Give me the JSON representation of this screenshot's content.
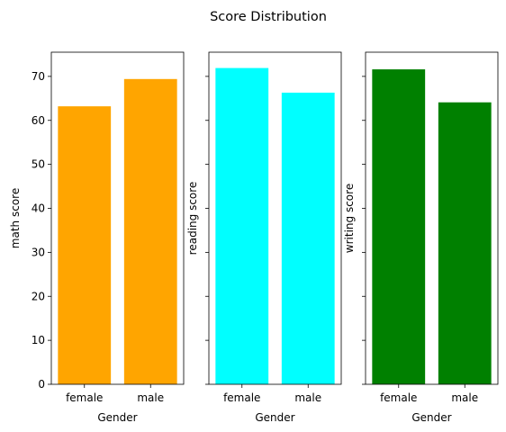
{
  "chart_data": {
    "title": "Score Distribution",
    "type": "bar",
    "ylim": [
      0,
      75.5
    ],
    "yticks": [
      0,
      10,
      20,
      30,
      40,
      50,
      60,
      70
    ],
    "charts": [
      {
        "type": "bar",
        "categories": [
          "female",
          "male"
        ],
        "values": [
          63.2,
          69.4
        ],
        "xlabel": "Gender",
        "ylabel": "math score",
        "color": "#ffa500",
        "show_yticklabels": true
      },
      {
        "type": "bar",
        "categories": [
          "female",
          "male"
        ],
        "values": [
          71.9,
          66.3
        ],
        "xlabel": "Gender",
        "ylabel": "reading score",
        "color": "#00ffff",
        "show_yticklabels": false
      },
      {
        "type": "bar",
        "categories": [
          "female",
          "male"
        ],
        "values": [
          71.6,
          64.1
        ],
        "xlabel": "Gender",
        "ylabel": "writing score",
        "color": "#008000",
        "show_yticklabels": false
      }
    ]
  }
}
